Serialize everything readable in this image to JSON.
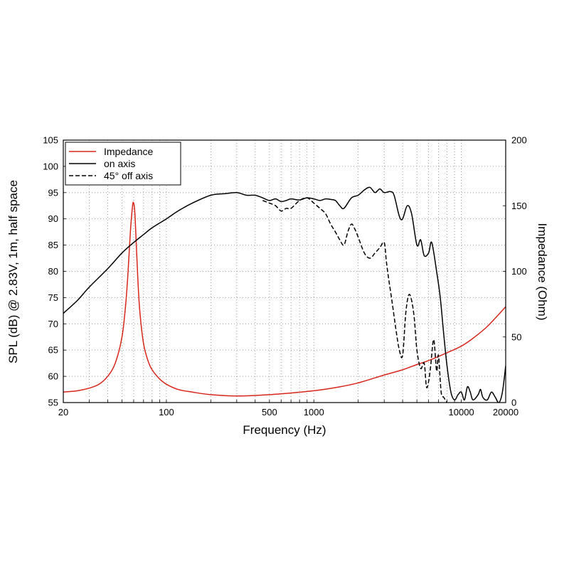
{
  "chart_data": {
    "type": "line",
    "title": "",
    "xlabel": "Frequency (Hz)",
    "ylabel": "SPL (dB) @ 2.83V, 1m, half space",
    "y2label": "Impedance (Ohm)",
    "xscale": "log",
    "xlim": [
      20,
      20000
    ],
    "ylim": [
      55,
      105
    ],
    "y2lim": [
      0,
      200
    ],
    "grid": true,
    "legend_position": "top-left",
    "x_tick_labels": [
      "20",
      "100",
      "500",
      "1000",
      "10000",
      "20000"
    ],
    "x_tick_values": [
      20,
      100,
      500,
      1000,
      10000,
      20000
    ],
    "y_tick_labels": [
      "55",
      "60",
      "65",
      "70",
      "75",
      "80",
      "85",
      "90",
      "95",
      "100",
      "105"
    ],
    "y_tick_values": [
      55,
      60,
      65,
      70,
      75,
      80,
      85,
      90,
      95,
      100,
      105
    ],
    "y2_tick_labels": [
      "0",
      "50",
      "100",
      "150",
      "200"
    ],
    "y2_tick_values": [
      0,
      50,
      100,
      150,
      200
    ],
    "series": [
      {
        "name": "Impedance",
        "axis": "right",
        "color": "#d9261c",
        "style": "solid",
        "x": [
          20,
          25,
          30,
          35,
          40,
          45,
          50,
          53,
          55,
          57,
          59,
          60,
          61,
          62,
          64,
          66,
          70,
          75,
          80,
          90,
          100,
          120,
          150,
          200,
          300,
          500,
          1000,
          1500,
          2000,
          3000,
          4000,
          5000,
          6000,
          8000,
          10000,
          12000,
          15000,
          20000
        ],
        "y": [
          8,
          9,
          11,
          14,
          20,
          30,
          50,
          75,
          100,
          130,
          150,
          152,
          146,
          130,
          95,
          70,
          45,
          32,
          25,
          18,
          14,
          10,
          8,
          6,
          5,
          6,
          9,
          12,
          15,
          21,
          25,
          29,
          32,
          38,
          43,
          49,
          58,
          73
        ]
      },
      {
        "name": "on axis",
        "axis": "left",
        "color": "#000000",
        "style": "solid",
        "x": [
          20,
          25,
          30,
          40,
          50,
          60,
          70,
          80,
          100,
          120,
          150,
          200,
          250,
          300,
          350,
          400,
          450,
          500,
          550,
          600,
          650,
          700,
          800,
          900,
          1000,
          1100,
          1200,
          1300,
          1400,
          1500,
          1600,
          1800,
          2000,
          2200,
          2400,
          2600,
          2800,
          3000,
          3300,
          3500,
          3800,
          4000,
          4300,
          4600,
          5000,
          5300,
          5600,
          6000,
          6300,
          6800,
          7200,
          7600,
          8000,
          8500,
          9000,
          9500,
          10000,
          10500,
          11000,
          11500,
          12000,
          13000,
          13500,
          14000,
          15000,
          16000,
          17000,
          18000,
          19000,
          20000
        ],
        "y": [
          72,
          74.5,
          77,
          80.5,
          83.5,
          85.5,
          87,
          88.3,
          90,
          91.5,
          93,
          94.5,
          94.8,
          95,
          94.5,
          94.5,
          94,
          93.5,
          93.8,
          93.3,
          93.5,
          93.8,
          93.6,
          94,
          93.8,
          93.5,
          93.8,
          93.7,
          93.5,
          92.5,
          92,
          94,
          94.5,
          95.5,
          96,
          95,
          95.7,
          95,
          95.2,
          94.5,
          90.5,
          90,
          92.5,
          91,
          85,
          86,
          83,
          83.5,
          85.5,
          80,
          75,
          68,
          62,
          57,
          55.5,
          56.5,
          57,
          55.5,
          58,
          57,
          55.5,
          56.5,
          57.5,
          56,
          55.5,
          57,
          56,
          55,
          57,
          62
        ]
      },
      {
        "name": "45° off axis",
        "axis": "left",
        "color": "#000000",
        "style": "dashed",
        "x": [
          450,
          500,
          550,
          600,
          650,
          700,
          800,
          900,
          1000,
          1100,
          1200,
          1300,
          1400,
          1500,
          1600,
          1700,
          1800,
          1900,
          2000,
          2200,
          2400,
          2600,
          2800,
          3000,
          3100,
          3200,
          3400,
          3600,
          3800,
          4000,
          4200,
          4400,
          4600,
          4800,
          5000,
          5300,
          5600,
          5800,
          6000,
          6200,
          6500,
          6800,
          7000,
          7300,
          7600,
          8000
        ],
        "y": [
          93.5,
          93,
          92.5,
          91.5,
          92,
          92,
          93.5,
          94,
          93,
          92,
          91,
          89,
          87.5,
          86,
          85,
          87.5,
          89,
          88,
          86.5,
          83.5,
          82.5,
          83.5,
          84.5,
          85.5,
          82,
          79,
          74,
          69,
          65,
          64,
          72,
          75.5,
          74.5,
          71,
          65,
          61.5,
          62.5,
          58,
          59,
          62,
          67,
          61,
          64,
          57,
          56,
          55
        ]
      }
    ]
  }
}
